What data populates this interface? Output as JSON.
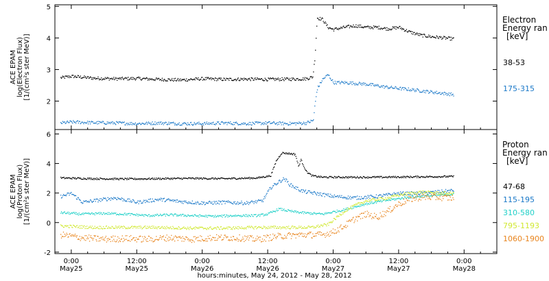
{
  "chart_data": {
    "type": "scatter",
    "xlabel": "hours:minutes, May 24, 2012 - May 28, 2012",
    "x_ticks": [
      {
        "hours": 0,
        "line1": "0:00",
        "line2": "May25"
      },
      {
        "hours": 12,
        "line1": "12:00",
        "line2": "May25"
      },
      {
        "hours": 24,
        "line1": "0:00",
        "line2": "May26"
      },
      {
        "hours": 36,
        "line1": "12:00",
        "line2": "May26"
      },
      {
        "hours": 48,
        "line1": "0:00",
        "line2": "May27"
      },
      {
        "hours": 60,
        "line1": "12:00",
        "line2": "May27"
      },
      {
        "hours": 72,
        "line1": "0:00",
        "line2": "May28"
      }
    ],
    "xlim": [
      -3,
      78
    ],
    "panels": [
      {
        "id": "electron",
        "ylabel_lines": [
          "ACE EPAM",
          "log(Electron Flux)",
          "[1/(cm²s ster MeV)]"
        ],
        "ylim": [
          1.1,
          5.05
        ],
        "yticks": [
          2,
          3,
          4,
          5
        ],
        "legend_title": [
          "Electron",
          "Energy ran",
          "[keV]"
        ],
        "series": [
          {
            "name": "38-53",
            "color": "#000000",
            "points": [
              [
                -2,
                2.75
              ],
              [
                0,
                2.8
              ],
              [
                4,
                2.74
              ],
              [
                8,
                2.72
              ],
              [
                12,
                2.73
              ],
              [
                16,
                2.7
              ],
              [
                20,
                2.68
              ],
              [
                24,
                2.72
              ],
              [
                28,
                2.7
              ],
              [
                32,
                2.71
              ],
              [
                36,
                2.7
              ],
              [
                40,
                2.71
              ],
              [
                43,
                2.72
              ],
              [
                44.2,
                2.78
              ],
              [
                44.6,
                3.4
              ],
              [
                45,
                4.65
              ],
              [
                46,
                4.6
              ],
              [
                47,
                4.35
              ],
              [
                48,
                4.28
              ],
              [
                50,
                4.35
              ],
              [
                52,
                4.4
              ],
              [
                54,
                4.35
              ],
              [
                56,
                4.35
              ],
              [
                58,
                4.3
              ],
              [
                60,
                4.35
              ],
              [
                62,
                4.2
              ],
              [
                64,
                4.1
              ],
              [
                66,
                4.05
              ],
              [
                68,
                4.02
              ],
              [
                70,
                3.98
              ]
            ],
            "noise": 0.05
          },
          {
            "name": "175-315",
            "color": "#1a78c8",
            "points": [
              [
                -2,
                1.32
              ],
              [
                0,
                1.35
              ],
              [
                4,
                1.33
              ],
              [
                8,
                1.32
              ],
              [
                12,
                1.3
              ],
              [
                16,
                1.32
              ],
              [
                20,
                1.3
              ],
              [
                24,
                1.3
              ],
              [
                28,
                1.32
              ],
              [
                32,
                1.3
              ],
              [
                36,
                1.32
              ],
              [
                40,
                1.3
              ],
              [
                43,
                1.32
              ],
              [
                44.3,
                1.4
              ],
              [
                44.6,
                1.9
              ],
              [
                45,
                2.4
              ],
              [
                46,
                2.7
              ],
              [
                47,
                2.85
              ],
              [
                48,
                2.6
              ],
              [
                50,
                2.6
              ],
              [
                54,
                2.55
              ],
              [
                58,
                2.45
              ],
              [
                62,
                2.38
              ],
              [
                66,
                2.3
              ],
              [
                70,
                2.22
              ]
            ],
            "noise": 0.05
          }
        ]
      },
      {
        "id": "proton",
        "ylabel_lines": [
          "ACE EPAM",
          "log(Proton Flux)",
          "[1/(cm²s ster MeV)]"
        ],
        "ylim": [
          -2.1,
          6.3
        ],
        "yticks": [
          -2,
          0,
          2,
          4,
          6
        ],
        "legend_title": [
          "Proton",
          "Energy ran",
          "[keV]"
        ],
        "series": [
          {
            "name": "47-68",
            "color": "#000000",
            "points": [
              [
                -2,
                3.05
              ],
              [
                4,
                3.0
              ],
              [
                10,
                2.98
              ],
              [
                16,
                3.0
              ],
              [
                22,
                3.02
              ],
              [
                28,
                3.0
              ],
              [
                34,
                3.05
              ],
              [
                36.5,
                3.2
              ],
              [
                37.5,
                4.2
              ],
              [
                38.5,
                4.75
              ],
              [
                40,
                4.7
              ],
              [
                41,
                4.65
              ],
              [
                41.6,
                3.8
              ],
              [
                42,
                4.3
              ],
              [
                43,
                3.5
              ],
              [
                44,
                3.2
              ],
              [
                46,
                3.1
              ],
              [
                50,
                3.1
              ],
              [
                56,
                3.1
              ],
              [
                62,
                3.12
              ],
              [
                70,
                3.15
              ]
            ],
            "noise": 0.06
          },
          {
            "name": "115-195",
            "color": "#1a78c8",
            "points": [
              [
                -2,
                1.8
              ],
              [
                0,
                2.0
              ],
              [
                2,
                1.4
              ],
              [
                4,
                1.5
              ],
              [
                8,
                1.7
              ],
              [
                12,
                1.4
              ],
              [
                16,
                1.6
              ],
              [
                20,
                1.45
              ],
              [
                24,
                1.35
              ],
              [
                28,
                1.4
              ],
              [
                32,
                1.35
              ],
              [
                35,
                1.5
              ],
              [
                36.5,
                2.4
              ],
              [
                38,
                2.8
              ],
              [
                39,
                3.0
              ],
              [
                40,
                2.6
              ],
              [
                41,
                2.4
              ],
              [
                42,
                2.2
              ],
              [
                43,
                2.1
              ],
              [
                44,
                2.05
              ],
              [
                48,
                1.8
              ],
              [
                52,
                1.7
              ],
              [
                56,
                1.8
              ],
              [
                60,
                2.0
              ],
              [
                64,
                2.0
              ],
              [
                70,
                2.2
              ]
            ],
            "noise": 0.12
          },
          {
            "name": "310-580",
            "color": "#20d0c8",
            "points": [
              [
                -2,
                0.7
              ],
              [
                2,
                0.6
              ],
              [
                6,
                0.65
              ],
              [
                10,
                0.6
              ],
              [
                14,
                0.5
              ],
              [
                18,
                0.55
              ],
              [
                22,
                0.5
              ],
              [
                26,
                0.45
              ],
              [
                30,
                0.5
              ],
              [
                34,
                0.5
              ],
              [
                36,
                0.6
              ],
              [
                38,
                0.95
              ],
              [
                40,
                0.8
              ],
              [
                42,
                0.7
              ],
              [
                46,
                0.6
              ],
              [
                50,
                0.9
              ],
              [
                54,
                1.3
              ],
              [
                58,
                1.55
              ],
              [
                62,
                1.75
              ],
              [
                66,
                1.85
              ],
              [
                70,
                1.95
              ]
            ],
            "noise": 0.08
          },
          {
            "name": "795-1193",
            "color": "#d0e830",
            "points": [
              [
                -2,
                -0.2
              ],
              [
                4,
                -0.3
              ],
              [
                10,
                -0.3
              ],
              [
                16,
                -0.3
              ],
              [
                22,
                -0.35
              ],
              [
                28,
                -0.35
              ],
              [
                34,
                -0.3
              ],
              [
                40,
                -0.3
              ],
              [
                44,
                -0.3
              ],
              [
                47,
                -0.1
              ],
              [
                50,
                0.8
              ],
              [
                52,
                1.2
              ],
              [
                54,
                1.5
              ],
              [
                56,
                1.6
              ],
              [
                58,
                1.7
              ],
              [
                60,
                1.9
              ],
              [
                62,
                2.0
              ],
              [
                64,
                2.1
              ],
              [
                66,
                2.05
              ],
              [
                70,
                2.0
              ]
            ],
            "noise": 0.1
          },
          {
            "name": "1060-1900",
            "color": "#e8841c",
            "points": [
              [
                -2,
                -0.8
              ],
              [
                2,
                -1.0
              ],
              [
                6,
                -1.1
              ],
              [
                10,
                -1.05
              ],
              [
                14,
                -1.1
              ],
              [
                18,
                -1.0
              ],
              [
                22,
                -1.1
              ],
              [
                26,
                -1.0
              ],
              [
                30,
                -1.0
              ],
              [
                34,
                -1.1
              ],
              [
                38,
                -0.9
              ],
              [
                42,
                -0.8
              ],
              [
                46,
                -0.8
              ],
              [
                48,
                -0.6
              ],
              [
                50,
                -0.2
              ],
              [
                52,
                0.3
              ],
              [
                54,
                0.6
              ],
              [
                56,
                0.4
              ],
              [
                58,
                0.8
              ],
              [
                60,
                1.3
              ],
              [
                62,
                1.6
              ],
              [
                64,
                1.75
              ],
              [
                66,
                1.75
              ],
              [
                70,
                1.7
              ]
            ],
            "noise": 0.22
          }
        ]
      }
    ]
  }
}
